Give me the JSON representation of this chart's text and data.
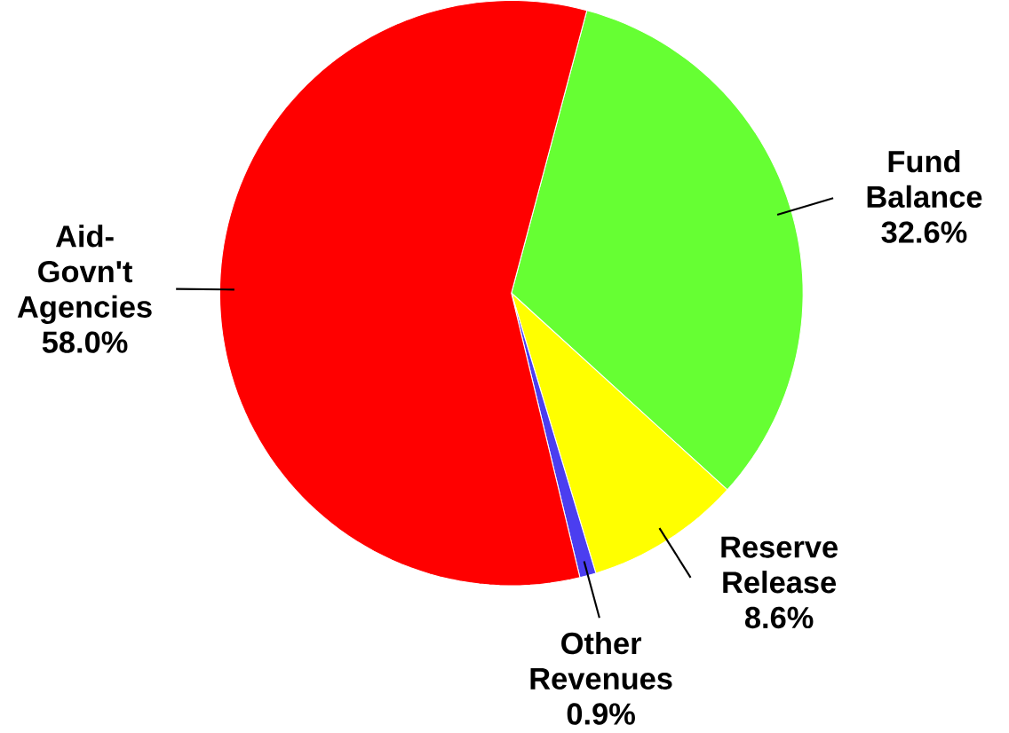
{
  "chart_data": {
    "type": "pie",
    "categories": [
      "Fund Balance",
      "Reserve Release",
      "Other Revenues",
      "Aid-Govn't Agencies"
    ],
    "values": [
      32.6,
      8.6,
      0.9,
      58.0
    ],
    "colors": [
      "#66ff33",
      "#ffff00",
      "#4b3ef0",
      "#ff0000"
    ],
    "value_labels": [
      "32.6%",
      "8.6%",
      "0.9%",
      "58.0%"
    ]
  }
}
